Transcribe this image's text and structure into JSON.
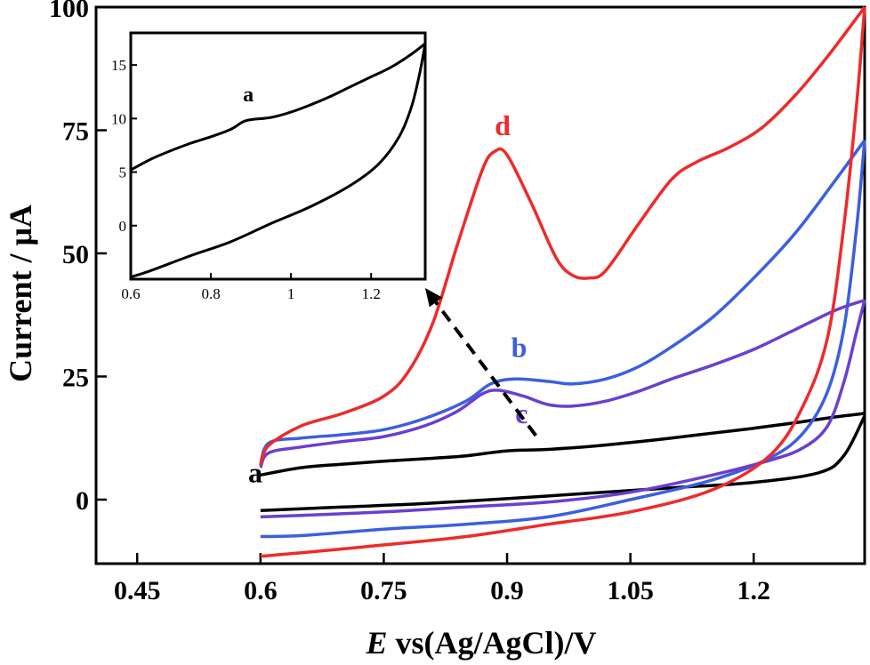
{
  "chart_data": {
    "type": "line",
    "xlabel_italic": "E",
    "xlabel_rest": " vs(Ag/AgCl)/V",
    "ylabel": "Current / μA",
    "xlim": [
      0.4,
      1.335
    ],
    "ylim": [
      -13,
      100
    ],
    "x_ticks": [
      0.45,
      0.6,
      0.75,
      0.9,
      1.05,
      1.2
    ],
    "x_tick_labels": [
      "0.45",
      "0.6",
      "0.75",
      "0.9",
      "1.05",
      "1.2"
    ],
    "y_ticks": [
      0,
      25,
      50,
      75,
      100
    ],
    "y_tick_labels": [
      "0",
      "25",
      "50",
      "75",
      "100"
    ],
    "series": [
      {
        "name": "a",
        "color": "#000000",
        "forward": [
          [
            0.6,
            5
          ],
          [
            0.65,
            6.5
          ],
          [
            0.7,
            7.2
          ],
          [
            0.75,
            7.8
          ],
          [
            0.8,
            8.3
          ],
          [
            0.85,
            8.9
          ],
          [
            0.9,
            9.9
          ],
          [
            0.95,
            10.2
          ],
          [
            1.0,
            10.8
          ],
          [
            1.05,
            11.6
          ],
          [
            1.1,
            12.5
          ],
          [
            1.15,
            13.5
          ],
          [
            1.2,
            14.5
          ],
          [
            1.25,
            15.6
          ],
          [
            1.3,
            16.8
          ],
          [
            1.335,
            17.5
          ]
        ],
        "reverse": [
          [
            1.335,
            17
          ],
          [
            1.31,
            9
          ],
          [
            1.28,
            5.5
          ],
          [
            1.2,
            3.5
          ],
          [
            1.1,
            2.4
          ],
          [
            1.0,
            1.3
          ],
          [
            0.9,
            0.2
          ],
          [
            0.8,
            -0.8
          ],
          [
            0.7,
            -1.5
          ],
          [
            0.6,
            -2.2
          ]
        ]
      },
      {
        "name": "b",
        "color": "#3b5fe0",
        "forward": [
          [
            0.6,
            7
          ],
          [
            0.61,
            11.5
          ],
          [
            0.65,
            12.5
          ],
          [
            0.7,
            13.2
          ],
          [
            0.75,
            14.2
          ],
          [
            0.8,
            16.5
          ],
          [
            0.85,
            20
          ],
          [
            0.88,
            23.5
          ],
          [
            0.91,
            24.5
          ],
          [
            0.95,
            24
          ],
          [
            0.98,
            23.5
          ],
          [
            1.02,
            24.5
          ],
          [
            1.06,
            27
          ],
          [
            1.1,
            31
          ],
          [
            1.15,
            37
          ],
          [
            1.2,
            45
          ],
          [
            1.25,
            54
          ],
          [
            1.3,
            65
          ],
          [
            1.335,
            73
          ]
        ],
        "reverse": [
          [
            1.335,
            73
          ],
          [
            1.325,
            55
          ],
          [
            1.31,
            35
          ],
          [
            1.29,
            22
          ],
          [
            1.26,
            13.5
          ],
          [
            1.22,
            8.5
          ],
          [
            1.15,
            4
          ],
          [
            1.05,
            0
          ],
          [
            0.95,
            -3.5
          ],
          [
            0.85,
            -5
          ],
          [
            0.75,
            -6
          ],
          [
            0.65,
            -7.3
          ],
          [
            0.6,
            -7.5
          ]
        ]
      },
      {
        "name": "c",
        "color": "#6a3fd0",
        "forward": [
          [
            0.6,
            6.5
          ],
          [
            0.61,
            9.5
          ],
          [
            0.65,
            10.7
          ],
          [
            0.7,
            11.8
          ],
          [
            0.75,
            12.8
          ],
          [
            0.8,
            15
          ],
          [
            0.84,
            18
          ],
          [
            0.87,
            21.5
          ],
          [
            0.89,
            22.2
          ],
          [
            0.92,
            21
          ],
          [
            0.95,
            19.3
          ],
          [
            0.98,
            19
          ],
          [
            1.02,
            20
          ],
          [
            1.06,
            22
          ],
          [
            1.1,
            24.5
          ],
          [
            1.15,
            27.3
          ],
          [
            1.2,
            30.5
          ],
          [
            1.25,
            34.5
          ],
          [
            1.3,
            38.5
          ],
          [
            1.335,
            40.5
          ]
        ],
        "reverse": [
          [
            1.335,
            40.5
          ],
          [
            1.325,
            34
          ],
          [
            1.31,
            24
          ],
          [
            1.29,
            15
          ],
          [
            1.26,
            10.5
          ],
          [
            1.22,
            8
          ],
          [
            1.15,
            5
          ],
          [
            1.05,
            1.5
          ],
          [
            0.95,
            -0.5
          ],
          [
            0.85,
            -1.5
          ],
          [
            0.75,
            -2.5
          ],
          [
            0.65,
            -3.2
          ],
          [
            0.6,
            -3.5
          ]
        ]
      },
      {
        "name": "d",
        "color": "#ee2a2a",
        "forward": [
          [
            0.6,
            7
          ],
          [
            0.61,
            11
          ],
          [
            0.65,
            15
          ],
          [
            0.7,
            17.5
          ],
          [
            0.75,
            21
          ],
          [
            0.78,
            26
          ],
          [
            0.81,
            36
          ],
          [
            0.84,
            52
          ],
          [
            0.87,
            67
          ],
          [
            0.885,
            70.7
          ],
          [
            0.9,
            70
          ],
          [
            0.93,
            60
          ],
          [
            0.96,
            49
          ],
          [
            0.98,
            45.5
          ],
          [
            1.0,
            45
          ],
          [
            1.02,
            46.5
          ],
          [
            1.06,
            56
          ],
          [
            1.1,
            65
          ],
          [
            1.13,
            68.5
          ],
          [
            1.17,
            71.5
          ],
          [
            1.21,
            75.5
          ],
          [
            1.25,
            82
          ],
          [
            1.29,
            90
          ],
          [
            1.335,
            100
          ]
        ],
        "reverse": [
          [
            1.335,
            100
          ],
          [
            1.325,
            80
          ],
          [
            1.31,
            56
          ],
          [
            1.29,
            33
          ],
          [
            1.26,
            19
          ],
          [
            1.22,
            9
          ],
          [
            1.15,
            2
          ],
          [
            1.05,
            -2.5
          ],
          [
            0.95,
            -5
          ],
          [
            0.85,
            -7.5
          ],
          [
            0.75,
            -9.2
          ],
          [
            0.65,
            -10.8
          ],
          [
            0.6,
            -11.5
          ]
        ]
      }
    ],
    "series_labels": [
      {
        "text": "a",
        "x": 0.585,
        "y": 3.5,
        "color": "#000000"
      },
      {
        "text": "b",
        "x": 0.905,
        "y": 29,
        "color": "#3b5fe0"
      },
      {
        "text": "c",
        "x": 0.91,
        "y": 15.5,
        "color": "#6a3fd0"
      },
      {
        "text": "d",
        "x": 0.885,
        "y": 74,
        "color": "#ee2a2a"
      }
    ],
    "inset": {
      "xlim": [
        0.6,
        1.335
      ],
      "ylim": [
        -5,
        18
      ],
      "x_ticks": [
        0.6,
        0.8,
        1.0,
        1.2
      ],
      "x_tick_labels": [
        "0.6",
        "0.8",
        "1",
        "1.2"
      ],
      "y_ticks": [
        0,
        5,
        10,
        15
      ],
      "y_tick_labels": [
        "0",
        "5",
        "10",
        "15"
      ],
      "label": {
        "text": "a",
        "x": 0.88,
        "y": 11.6
      },
      "forward": [
        [
          0.6,
          5.2
        ],
        [
          0.65,
          6.2
        ],
        [
          0.7,
          7.0
        ],
        [
          0.75,
          7.7
        ],
        [
          0.8,
          8.3
        ],
        [
          0.85,
          9.0
        ],
        [
          0.88,
          9.7
        ],
        [
          0.9,
          9.9
        ],
        [
          0.95,
          10.1
        ],
        [
          1.0,
          10.6
        ],
        [
          1.05,
          11.3
        ],
        [
          1.1,
          12.1
        ],
        [
          1.15,
          13.0
        ],
        [
          1.2,
          13.9
        ],
        [
          1.25,
          14.8
        ],
        [
          1.3,
          16.0
        ],
        [
          1.335,
          17.0
        ]
      ],
      "reverse": [
        [
          1.335,
          17.0
        ],
        [
          1.32,
          14
        ],
        [
          1.3,
          11
        ],
        [
          1.27,
          8.3
        ],
        [
          1.22,
          5.8
        ],
        [
          1.15,
          3.8
        ],
        [
          1.05,
          1.8
        ],
        [
          0.95,
          0.2
        ],
        [
          0.85,
          -1.5
        ],
        [
          0.75,
          -2.8
        ],
        [
          0.65,
          -4.2
        ],
        [
          0.6,
          -4.8
        ]
      ]
    },
    "arrow": {
      "from": [
        0.935,
        13
      ],
      "to_inset": [
        1.335,
        -5
      ]
    }
  }
}
